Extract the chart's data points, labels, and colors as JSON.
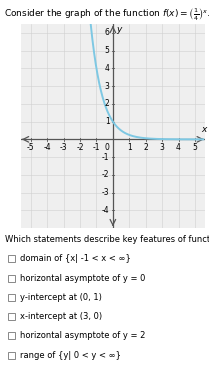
{
  "title": "Consider the graph of the function $f(x) = (\\frac{1}{4})^x$.",
  "title_fontsize": 6.5,
  "curve_color": "#7ec8e3",
  "curve_linewidth": 1.4,
  "xlim": [
    -5.6,
    5.6
  ],
  "ylim": [
    -5.0,
    6.5
  ],
  "xtick_vals": [
    -5,
    -4,
    -3,
    -2,
    -1,
    1,
    2,
    3,
    4,
    5
  ],
  "ytick_vals": [
    -4,
    -3,
    -2,
    -1,
    1,
    2,
    3,
    4,
    5,
    6
  ],
  "tick_fontsize": 5.5,
  "xlabel": "x",
  "ylabel": "y",
  "axis_label_fontsize": 6.5,
  "grid_color": "#d0d0d0",
  "grid_linewidth": 0.4,
  "background_color": "#efefef",
  "question_text": "Which statements describe key features of function f?",
  "question_fontsize": 6.0,
  "statements": [
    "domain of {x| -1 < x < ∞}",
    "horizontal asymptote of y = 0",
    "y-intercept at (0, 1)",
    "x-intercept at (3, 0)",
    "horizontal asymptote of y = 2",
    "range of {y| 0 < y < ∞}"
  ],
  "statements_fontsize": 6.0
}
